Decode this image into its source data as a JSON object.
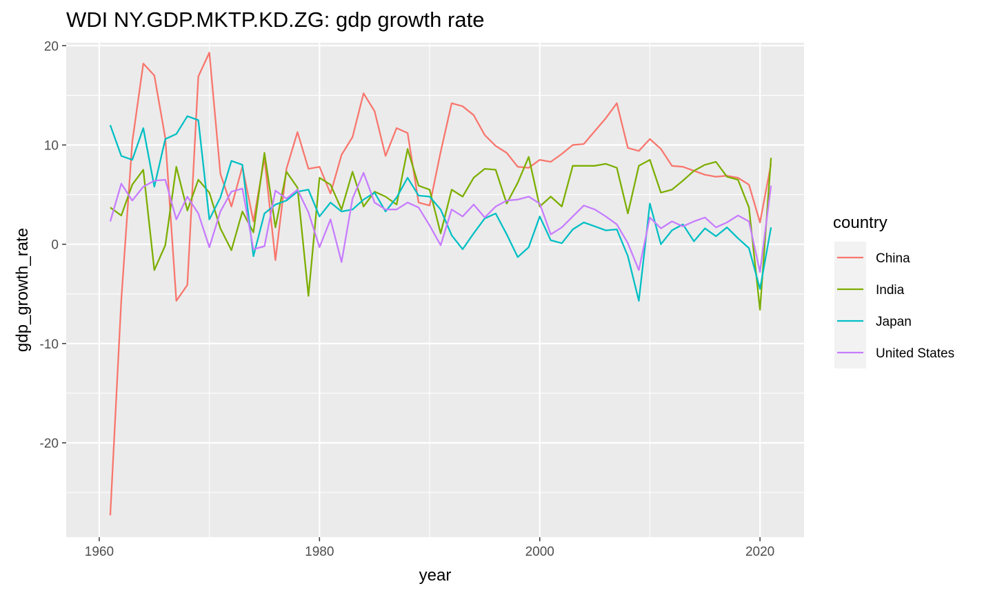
{
  "chart_data": {
    "type": "line",
    "title": "WDI NY.GDP.MKTP.KD.ZG: gdp growth rate",
    "xlabel": "year",
    "ylabel": "gdp_growth_rate",
    "xlim": [
      1957,
      2024
    ],
    "ylim": [
      -29.5,
      20.3
    ],
    "x_ticks": [
      1960,
      1980,
      2000,
      2020
    ],
    "x_minor_ticks": [
      1970,
      1990,
      2010
    ],
    "y_ticks": [
      -20,
      -10,
      0,
      10,
      20
    ],
    "y_minor_ticks": [
      -25,
      -15,
      -5,
      5,
      15
    ],
    "x_tick_labels": [
      "1960",
      "1980",
      "2000",
      "2020"
    ],
    "y_tick_labels": [
      "-20",
      "-10",
      "0",
      "10",
      "20"
    ],
    "grid": true,
    "legend": {
      "title": "country",
      "position": "right"
    },
    "x": [
      1961,
      1962,
      1963,
      1964,
      1965,
      1966,
      1967,
      1968,
      1969,
      1970,
      1971,
      1972,
      1973,
      1974,
      1975,
      1976,
      1977,
      1978,
      1979,
      1980,
      1981,
      1982,
      1983,
      1984,
      1985,
      1986,
      1987,
      1988,
      1989,
      1990,
      1991,
      1992,
      1993,
      1994,
      1995,
      1996,
      1997,
      1998,
      1999,
      2000,
      2001,
      2002,
      2003,
      2004,
      2005,
      2006,
      2007,
      2008,
      2009,
      2010,
      2011,
      2012,
      2013,
      2014,
      2015,
      2016,
      2017,
      2018,
      2019,
      2020,
      2021
    ],
    "series": [
      {
        "name": "China",
        "color": "#F8766D",
        "values": [
          -27.3,
          -5.6,
          10.3,
          18.2,
          17.0,
          10.7,
          -5.7,
          -4.1,
          16.9,
          19.3,
          7.1,
          3.8,
          7.8,
          2.3,
          8.7,
          -1.6,
          7.6,
          11.3,
          7.6,
          7.8,
          5.1,
          9.0,
          10.8,
          15.2,
          13.4,
          8.9,
          11.7,
          11.2,
          4.2,
          3.9,
          9.3,
          14.2,
          13.9,
          13.0,
          11.0,
          9.9,
          9.2,
          7.8,
          7.7,
          8.5,
          8.3,
          9.1,
          10.0,
          10.1,
          11.4,
          12.7,
          14.2,
          9.7,
          9.4,
          10.6,
          9.6,
          7.9,
          7.8,
          7.4,
          7.0,
          6.8,
          6.9,
          6.7,
          6.0,
          2.2,
          8.1
        ]
      },
      {
        "name": "India",
        "color": "#7CAE00",
        "values": [
          3.7,
          2.9,
          6.0,
          7.5,
          -2.6,
          -0.1,
          7.8,
          3.4,
          6.5,
          5.2,
          1.6,
          -0.6,
          3.3,
          1.2,
          9.2,
          1.7,
          7.3,
          5.7,
          -5.2,
          6.7,
          6.0,
          3.5,
          7.3,
          3.8,
          5.3,
          4.8,
          4.0,
          9.6,
          5.9,
          5.5,
          1.1,
          5.5,
          4.8,
          6.7,
          7.6,
          7.5,
          4.1,
          6.2,
          8.8,
          3.8,
          4.8,
          3.8,
          7.9,
          7.9,
          7.9,
          8.1,
          7.7,
          3.1,
          7.9,
          8.5,
          5.2,
          5.5,
          6.4,
          7.4,
          8.0,
          8.3,
          6.8,
          6.5,
          3.7,
          -6.6,
          8.7
        ]
      },
      {
        "name": "Japan",
        "color": "#00BFC4",
        "values": [
          12.0,
          8.9,
          8.5,
          11.7,
          5.8,
          10.6,
          11.1,
          12.9,
          12.5,
          2.5,
          4.7,
          8.4,
          8.0,
          -1.2,
          3.1,
          4.0,
          4.4,
          5.3,
          5.5,
          2.8,
          4.2,
          3.3,
          3.5,
          4.5,
          5.2,
          3.3,
          4.7,
          6.7,
          4.9,
          4.8,
          3.5,
          0.9,
          -0.5,
          1.1,
          2.6,
          3.1,
          1.0,
          -1.3,
          -0.3,
          2.8,
          0.4,
          0.1,
          1.5,
          2.2,
          1.8,
          1.4,
          1.5,
          -1.2,
          -5.7,
          4.1,
          0.0,
          1.4,
          2.0,
          0.3,
          1.6,
          0.8,
          1.7,
          0.6,
          -0.4,
          -4.5,
          1.7
        ]
      },
      {
        "name": "United States",
        "color": "#C77CFF",
        "values": [
          2.3,
          6.1,
          4.4,
          5.8,
          6.4,
          6.5,
          2.5,
          4.8,
          3.1,
          -0.3,
          3.3,
          5.3,
          5.6,
          -0.5,
          -0.2,
          5.4,
          4.6,
          5.5,
          3.2,
          -0.3,
          2.5,
          -1.8,
          4.6,
          7.2,
          4.2,
          3.5,
          3.5,
          4.2,
          3.7,
          1.9,
          -0.1,
          3.5,
          2.8,
          4.0,
          2.7,
          3.8,
          4.4,
          4.5,
          4.8,
          4.1,
          1.0,
          1.7,
          2.8,
          3.9,
          3.5,
          2.8,
          2.0,
          0.1,
          -2.6,
          2.7,
          1.6,
          2.3,
          1.8,
          2.3,
          2.7,
          1.7,
          2.2,
          2.9,
          2.3,
          -2.8,
          5.9
        ]
      }
    ]
  }
}
